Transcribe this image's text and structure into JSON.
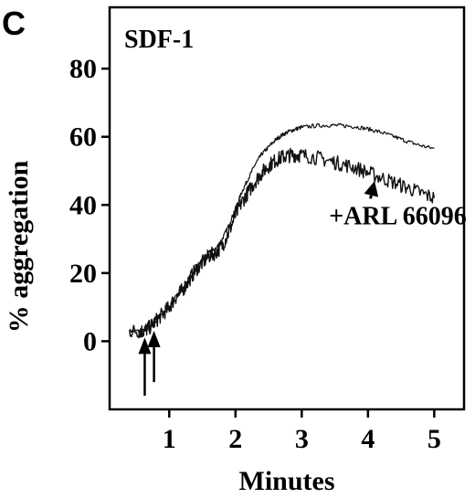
{
  "panel_label": "C",
  "chart_data": {
    "type": "line",
    "title": "SDF-1",
    "xlabel": "Minutes",
    "ylabel": "% aggregation",
    "xlim": [
      0.1,
      5.45
    ],
    "ylim": [
      -20,
      98
    ],
    "xticks": [
      1,
      2,
      3,
      4,
      5
    ],
    "yticks": [
      0,
      20,
      40,
      60,
      80
    ],
    "grid": false,
    "annotations": [
      {
        "text": "+ARL 66096",
        "x": 4.45,
        "y": 37,
        "arrow_to": {
          "x": 4.1,
          "y": 47
        }
      }
    ],
    "agonist_arrows": [
      {
        "x": 0.63,
        "y_tip": 0,
        "y_tail": -16
      },
      {
        "x": 0.77,
        "y_tip": 2,
        "y_tail": -12
      }
    ],
    "series": [
      {
        "name": "",
        "noise": 0.6,
        "x": [
          0.4,
          0.55,
          0.62,
          0.7,
          0.8,
          0.9,
          1.0,
          1.1,
          1.2,
          1.3,
          1.4,
          1.5,
          1.6,
          1.7,
          1.8,
          1.9,
          2.0,
          2.1,
          2.2,
          2.3,
          2.4,
          2.5,
          2.6,
          2.7,
          2.8,
          2.9,
          3.0,
          3.2,
          3.4,
          3.6,
          3.8,
          4.0,
          4.2,
          4.4,
          4.6,
          4.8,
          5.0
        ],
        "values": [
          3,
          3,
          3,
          4,
          6,
          8,
          10,
          13,
          15,
          18,
          21,
          24,
          26,
          27,
          30,
          34,
          39,
          44,
          48,
          52,
          55,
          57,
          59,
          60.5,
          61.5,
          62.2,
          62.8,
          63.2,
          63.4,
          63.3,
          63.0,
          62.3,
          61.3,
          60.0,
          58.6,
          57.4,
          56.5
        ]
      },
      {
        "name": "+ARL 66096",
        "noise": 2.2,
        "x": [
          0.4,
          0.55,
          0.62,
          0.7,
          0.8,
          0.9,
          1.0,
          1.1,
          1.2,
          1.3,
          1.4,
          1.5,
          1.6,
          1.7,
          1.8,
          1.9,
          2.0,
          2.1,
          2.2,
          2.3,
          2.4,
          2.5,
          2.6,
          2.7,
          2.8,
          2.9,
          3.0,
          3.2,
          3.4,
          3.6,
          3.8,
          4.0,
          4.2,
          4.4,
          4.6,
          4.8,
          5.0
        ],
        "values": [
          3,
          3,
          3,
          4,
          6,
          8,
          10,
          13,
          15,
          18,
          21,
          23,
          25,
          26,
          28,
          32,
          37,
          41,
          44,
          47,
          49.5,
          51.5,
          53,
          54,
          54.5,
          54.7,
          54.6,
          54,
          53,
          52,
          51,
          49.5,
          48,
          46.5,
          45,
          43.5,
          42
        ]
      }
    ]
  }
}
